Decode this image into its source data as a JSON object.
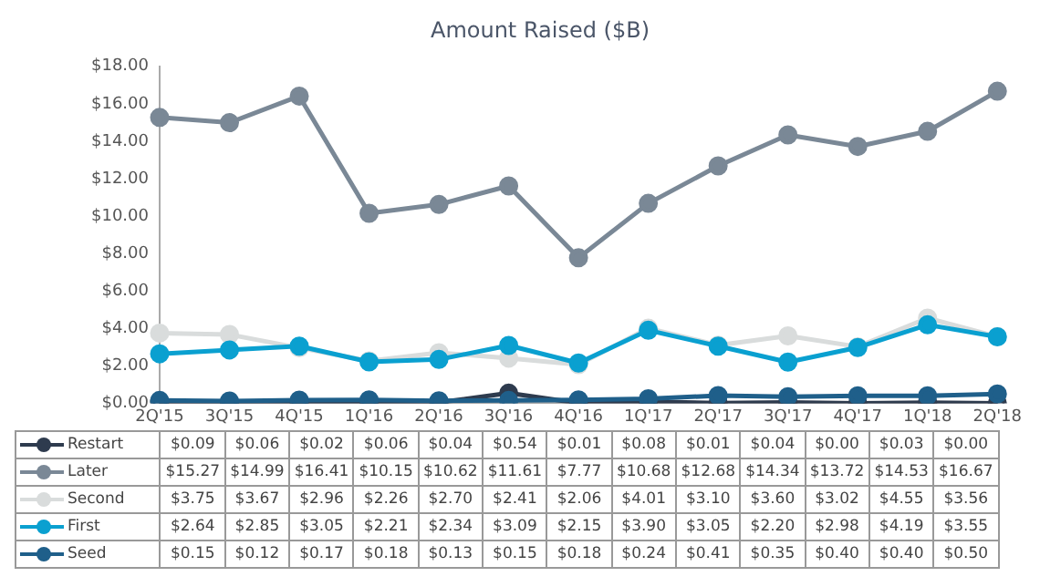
{
  "chart_data": {
    "type": "line",
    "title": "Amount Raised ($B)",
    "categories": [
      "2Q'15",
      "3Q'15",
      "4Q'15",
      "1Q'16",
      "2Q'16",
      "3Q'16",
      "4Q'16",
      "1Q'17",
      "2Q'17",
      "3Q'17",
      "4Q'17",
      "1Q'18",
      "2Q'18"
    ],
    "series": [
      {
        "name": "Restart",
        "color": "#2e3b4e",
        "values": [
          0.09,
          0.06,
          0.02,
          0.06,
          0.04,
          0.54,
          0.01,
          0.08,
          0.01,
          0.04,
          0.0,
          0.03,
          0.0
        ],
        "value_labels": [
          "$0.09",
          "$0.06",
          "$0.02",
          "$0.06",
          "$0.04",
          "$0.54",
          "$0.01",
          "$0.08",
          "$0.01",
          "$0.04",
          "$0.00",
          "$0.03",
          "$0.00"
        ]
      },
      {
        "name": "Later",
        "color": "#7a8896",
        "values": [
          15.27,
          14.99,
          16.41,
          10.15,
          10.62,
          11.61,
          7.77,
          10.68,
          12.68,
          14.34,
          13.72,
          14.53,
          16.67
        ],
        "value_labels": [
          "$15.27",
          "$14.99",
          "$16.41",
          "$10.15",
          "$10.62",
          "$11.61",
          "$7.77",
          "$10.68",
          "$12.68",
          "$14.34",
          "$13.72",
          "$14.53",
          "$16.67"
        ]
      },
      {
        "name": "Second",
        "color": "#d9dcdc",
        "values": [
          3.75,
          3.67,
          2.96,
          2.26,
          2.7,
          2.41,
          2.06,
          4.01,
          3.1,
          3.6,
          3.02,
          4.55,
          3.56
        ],
        "value_labels": [
          "$3.75",
          "$3.67",
          "$2.96",
          "$2.26",
          "$2.70",
          "$2.41",
          "$2.06",
          "$4.01",
          "$3.10",
          "$3.60",
          "$3.02",
          "$4.55",
          "$3.56"
        ]
      },
      {
        "name": "First",
        "color": "#0aa0d0",
        "values": [
          2.64,
          2.85,
          3.05,
          2.21,
          2.34,
          3.09,
          2.15,
          3.9,
          3.05,
          2.2,
          2.98,
          4.19,
          3.55
        ],
        "value_labels": [
          "$2.64",
          "$2.85",
          "$3.05",
          "$2.21",
          "$2.34",
          "$3.09",
          "$2.15",
          "$3.90",
          "$3.05",
          "$2.20",
          "$2.98",
          "$4.19",
          "$3.55"
        ]
      },
      {
        "name": "Seed",
        "color": "#1f5f8a",
        "values": [
          0.15,
          0.12,
          0.17,
          0.18,
          0.13,
          0.15,
          0.18,
          0.24,
          0.41,
          0.35,
          0.4,
          0.4,
          0.5
        ],
        "value_labels": [
          "$0.15",
          "$0.12",
          "$0.17",
          "$0.18",
          "$0.13",
          "$0.15",
          "$0.18",
          "$0.24",
          "$0.41",
          "$0.35",
          "$0.40",
          "$0.40",
          "$0.50"
        ]
      }
    ],
    "ylim": [
      0,
      18
    ],
    "yticks": [
      {
        "value": 0,
        "label": "$0.00"
      },
      {
        "value": 2,
        "label": "$2.00"
      },
      {
        "value": 4,
        "label": "$4.00"
      },
      {
        "value": 6,
        "label": "$6.00"
      },
      {
        "value": 8,
        "label": "$8.00"
      },
      {
        "value": 10,
        "label": "$10.00"
      },
      {
        "value": 12,
        "label": "$12.00"
      },
      {
        "value": 14,
        "label": "$14.00"
      },
      {
        "value": 16,
        "label": "$16.00"
      },
      {
        "value": 18,
        "label": "$18.00"
      }
    ],
    "grid": false,
    "legend": "bottom",
    "marker": "circle",
    "line_style": "solid"
  }
}
